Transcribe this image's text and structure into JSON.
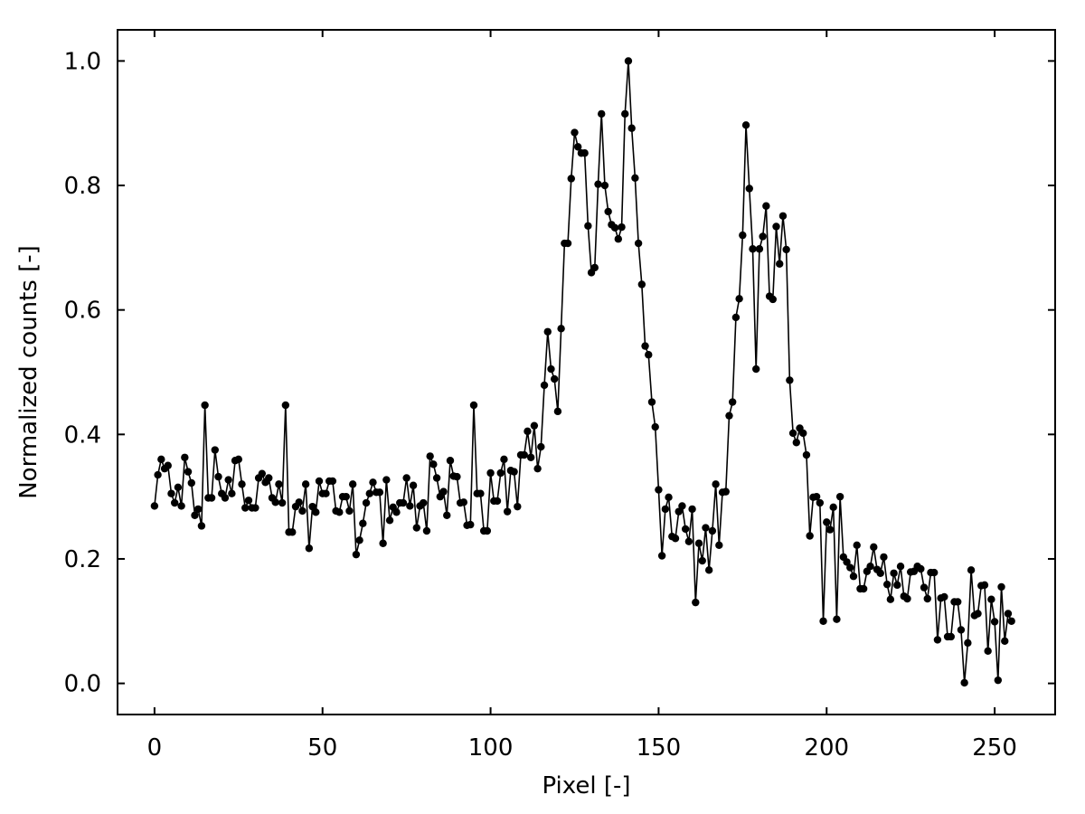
{
  "chart_data": {
    "type": "line",
    "title": "",
    "xlabel": "Pixel [-]",
    "ylabel": "Normalized counts [-]",
    "xlim": [
      -11,
      268
    ],
    "ylim": [
      -0.05,
      1.05
    ],
    "grid": false,
    "markers": true,
    "line_color": "#000000",
    "x_ticks": [
      0,
      50,
      100,
      150,
      200,
      250
    ],
    "x_tick_labels": [
      "0",
      "50",
      "100",
      "150",
      "200",
      "250"
    ],
    "y_ticks": [
      0.0,
      0.2,
      0.4,
      0.6,
      0.8,
      1.0
    ],
    "y_tick_labels": [
      "0.0",
      "0.2",
      "0.4",
      "0.6",
      "0.8",
      "1.0"
    ],
    "series": [
      {
        "x_start": 0,
        "x_step": 1,
        "values": [
          0.285,
          0.335,
          0.36,
          0.345,
          0.35,
          0.305,
          0.29,
          0.315,
          0.285,
          0.363,
          0.34,
          0.322,
          0.27,
          0.28,
          0.253,
          0.447,
          0.298,
          0.298,
          0.375,
          0.332,
          0.305,
          0.298,
          0.327,
          0.305,
          0.358,
          0.36,
          0.32,
          0.282,
          0.294,
          0.282,
          0.282,
          0.33,
          0.337,
          0.323,
          0.33,
          0.298,
          0.291,
          0.32,
          0.29,
          0.447,
          0.243,
          0.243,
          0.284,
          0.291,
          0.277,
          0.32,
          0.217,
          0.284,
          0.275,
          0.325,
          0.305,
          0.305,
          0.325,
          0.325,
          0.277,
          0.275,
          0.3,
          0.3,
          0.277,
          0.32,
          0.207,
          0.23,
          0.257,
          0.29,
          0.305,
          0.323,
          0.307,
          0.307,
          0.225,
          0.327,
          0.262,
          0.283,
          0.275,
          0.29,
          0.29,
          0.33,
          0.285,
          0.318,
          0.25,
          0.285,
          0.29,
          0.245,
          0.365,
          0.352,
          0.33,
          0.3,
          0.308,
          0.27,
          0.358,
          0.333,
          0.332,
          0.29,
          0.291,
          0.254,
          0.255,
          0.447,
          0.305,
          0.305,
          0.245,
          0.245,
          0.338,
          0.293,
          0.293,
          0.338,
          0.36,
          0.276,
          0.342,
          0.34,
          0.284,
          0.367,
          0.367,
          0.405,
          0.363,
          0.414,
          0.345,
          0.38,
          0.479,
          0.565,
          0.505,
          0.489,
          0.437,
          0.57,
          0.707,
          0.707,
          0.811,
          0.885,
          0.862,
          0.852,
          0.852,
          0.735,
          0.66,
          0.668,
          0.802,
          0.915,
          0.8,
          0.758,
          0.737,
          0.732,
          0.714,
          0.733,
          0.915,
          1.0,
          0.892,
          0.812,
          0.707,
          0.641,
          0.542,
          0.528,
          0.452,
          0.412,
          0.311,
          0.205,
          0.28,
          0.299,
          0.236,
          0.233,
          0.276,
          0.285,
          0.248,
          0.228,
          0.28,
          0.13,
          0.225,
          0.197,
          0.25,
          0.182,
          0.245,
          0.32,
          0.222,
          0.307,
          0.308,
          0.43,
          0.452,
          0.588,
          0.618,
          0.72,
          0.897,
          0.795,
          0.698,
          0.505,
          0.698,
          0.718,
          0.767,
          0.622,
          0.617,
          0.734,
          0.674,
          0.751,
          0.697,
          0.487,
          0.402,
          0.387,
          0.41,
          0.402,
          0.367,
          0.237,
          0.299,
          0.3,
          0.29,
          0.1,
          0.259,
          0.247,
          0.283,
          0.103,
          0.3,
          0.203,
          0.195,
          0.186,
          0.172,
          0.222,
          0.152,
          0.152,
          0.18,
          0.188,
          0.219,
          0.183,
          0.177,
          0.203,
          0.159,
          0.135,
          0.177,
          0.158,
          0.188,
          0.14,
          0.136,
          0.179,
          0.18,
          0.188,
          0.184,
          0.154,
          0.136,
          0.178,
          0.178,
          0.07,
          0.137,
          0.139,
          0.075,
          0.075,
          0.131,
          0.131,
          0.086,
          0.001,
          0.065,
          0.182,
          0.109,
          0.112,
          0.157,
          0.158,
          0.052,
          0.135,
          0.099,
          0.005,
          0.155,
          0.068,
          0.112,
          0.1
        ]
      }
    ]
  }
}
